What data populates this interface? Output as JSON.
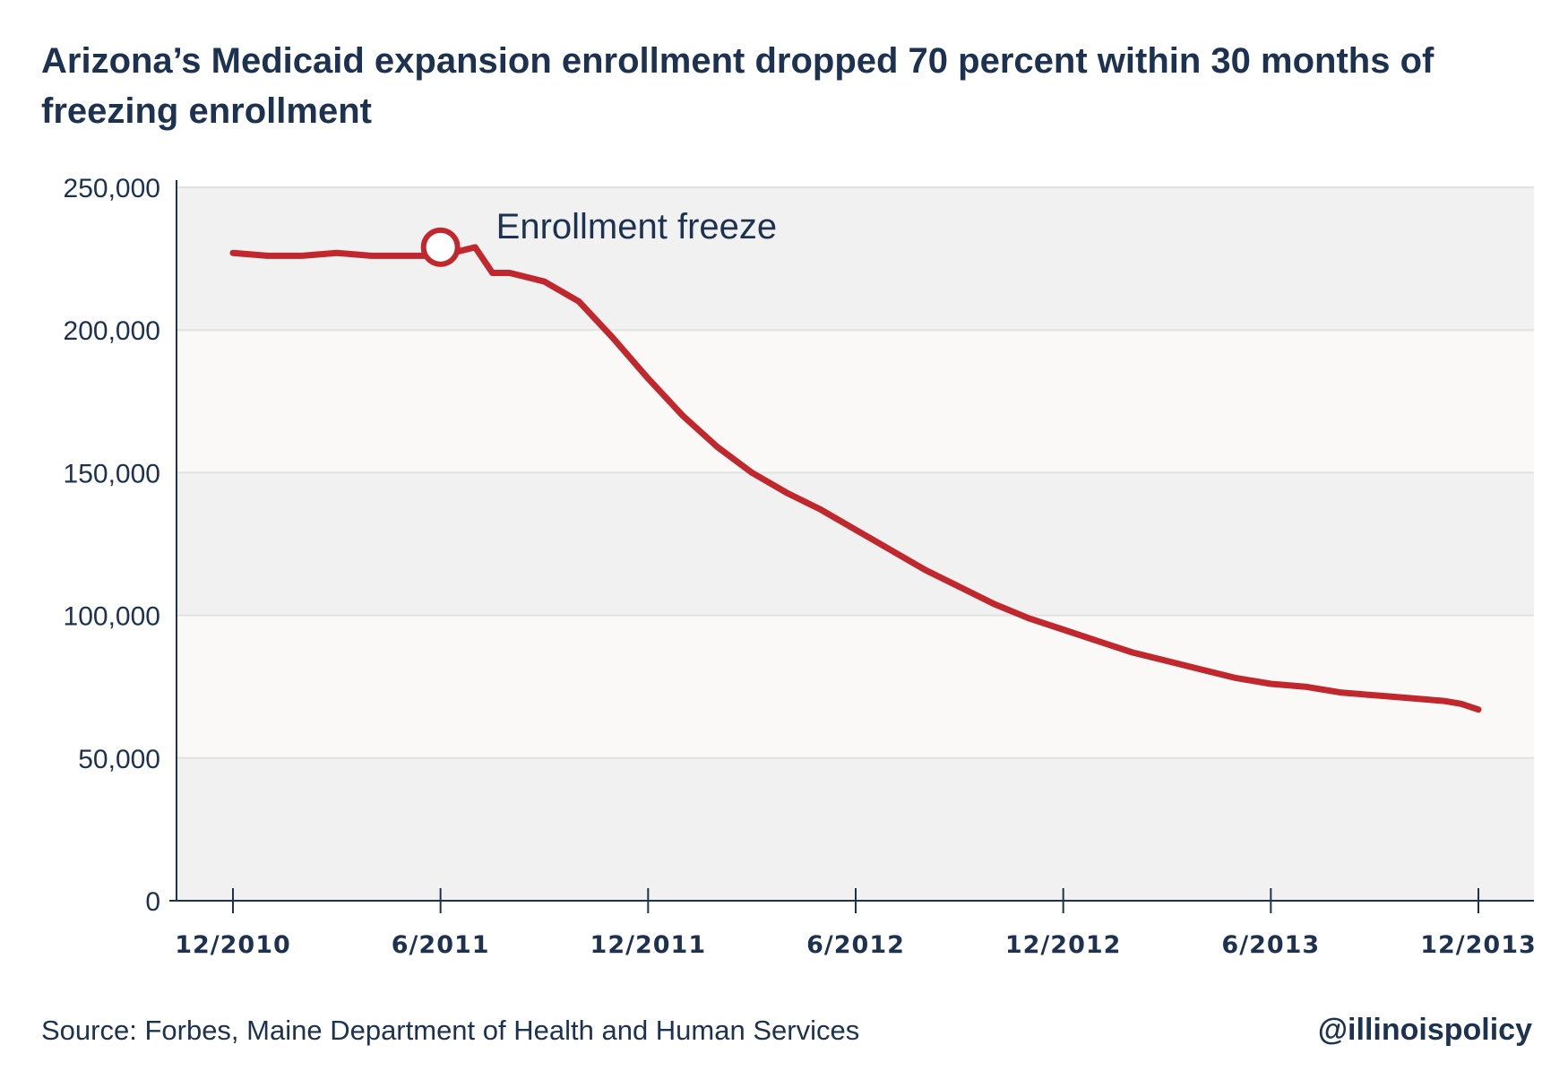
{
  "title": "Arizona’s Medicaid expansion enrollment dropped 70 percent within 30 months of freezing enrollment",
  "source": "Source: Forbes, Maine Department of Health and Human Services",
  "handle": "@illinoispolicy",
  "colors": {
    "line": "#c0282d",
    "text": "#1c3250",
    "band_dark": "#f1f1f1",
    "band_light": "#faf9f8",
    "grid": "#e2e2e2"
  },
  "chart_data": {
    "type": "line",
    "title": "Arizona’s Medicaid expansion enrollment dropped 70 percent within 30 months of freezing enrollment",
    "xlabel": "",
    "ylabel": "",
    "ylim": [
      0,
      250000
    ],
    "yticks": [
      0,
      50000,
      100000,
      150000,
      200000,
      250000
    ],
    "ytick_labels": [
      "0",
      "50,000",
      "100,000",
      "150,000",
      "200,000",
      "250,000"
    ],
    "xlim": [
      "12/2010",
      "12/2013"
    ],
    "xticks": [
      "12/2010",
      "6/2011",
      "12/2011",
      "6/2012",
      "12/2012",
      "6/2013",
      "12/2013"
    ],
    "grid": true,
    "series": [
      {
        "x": [
          "12/2010",
          "1/2011",
          "1/2011",
          "2/2011",
          "3/2011",
          "4/2011",
          "5/2011",
          "6/2011",
          "7/2011",
          "7/2011",
          "8/2011",
          "9/2011",
          "10/2011",
          "11/2011",
          "12/2011",
          "1/2012",
          "2/2012",
          "3/2012",
          "4/2012",
          "5/2012",
          "6/2012",
          "7/2012",
          "8/2012",
          "9/2012",
          "10/2012",
          "11/2012",
          "12/2012",
          "1/2013",
          "2/2013",
          "3/2013",
          "4/2013",
          "5/2013",
          "6/2013",
          "7/2013",
          "8/2013",
          "9/2013",
          "10/2013",
          "11/2013",
          "11/2013",
          "12/2013"
        ],
        "values": [
          227000,
          226000,
          226000,
          226000,
          227000,
          226000,
          226000,
          226000,
          229000,
          220000,
          220000,
          217000,
          210000,
          197000,
          183000,
          170000,
          159000,
          150000,
          143000,
          137000,
          130000,
          123000,
          116000,
          110000,
          104000,
          99000,
          95000,
          91000,
          87000,
          84000,
          81000,
          78000,
          76000,
          75000,
          73000,
          72000,
          71000,
          70000,
          69000,
          67000
        ],
        "marker_index": 8
      }
    ],
    "annotations": [
      {
        "text": "Enrollment freeze",
        "x": "6/2011",
        "y": 229000
      }
    ]
  }
}
